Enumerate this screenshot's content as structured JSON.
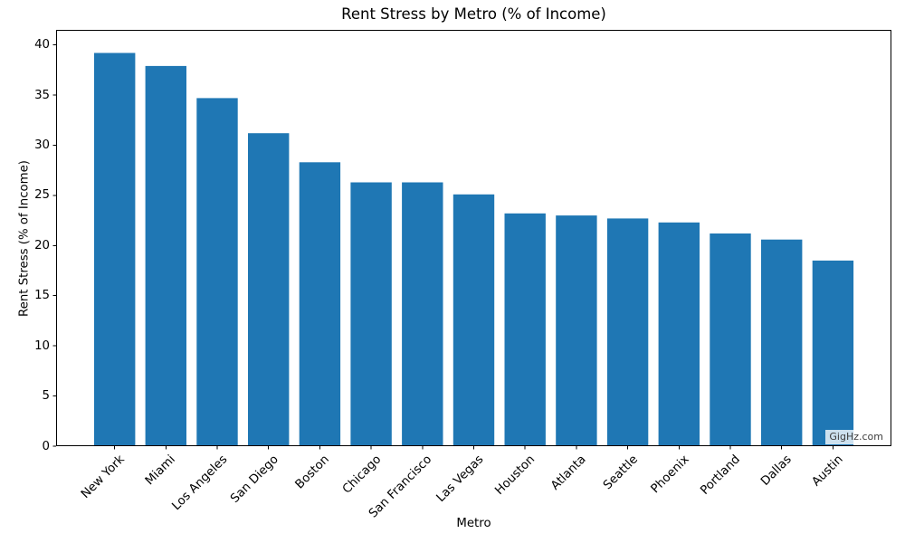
{
  "chart_data": {
    "type": "bar",
    "title": "Rent Stress by Metro (% of Income)",
    "xlabel": "Metro",
    "ylabel": "Rent Stress (% of Income)",
    "categories": [
      "New York",
      "Miami",
      "Los Angeles",
      "San Diego",
      "Boston",
      "Chicago",
      "San Francisco",
      "Las Vegas",
      "Houston",
      "Atlanta",
      "Seattle",
      "Phoenix",
      "Portland",
      "Dallas",
      "Austin"
    ],
    "values": [
      39.2,
      37.9,
      34.7,
      31.2,
      28.3,
      26.3,
      26.3,
      25.1,
      23.2,
      23.0,
      22.7,
      22.3,
      21.2,
      20.6,
      18.5
    ],
    "yticks": [
      0,
      5,
      10,
      15,
      20,
      25,
      30,
      35,
      40
    ],
    "ylim": [
      0,
      41.5
    ],
    "grid": false,
    "legend": null,
    "bar_color": "#1f77b4",
    "axis_color": "#000000",
    "watermark": "GigHz.com"
  }
}
